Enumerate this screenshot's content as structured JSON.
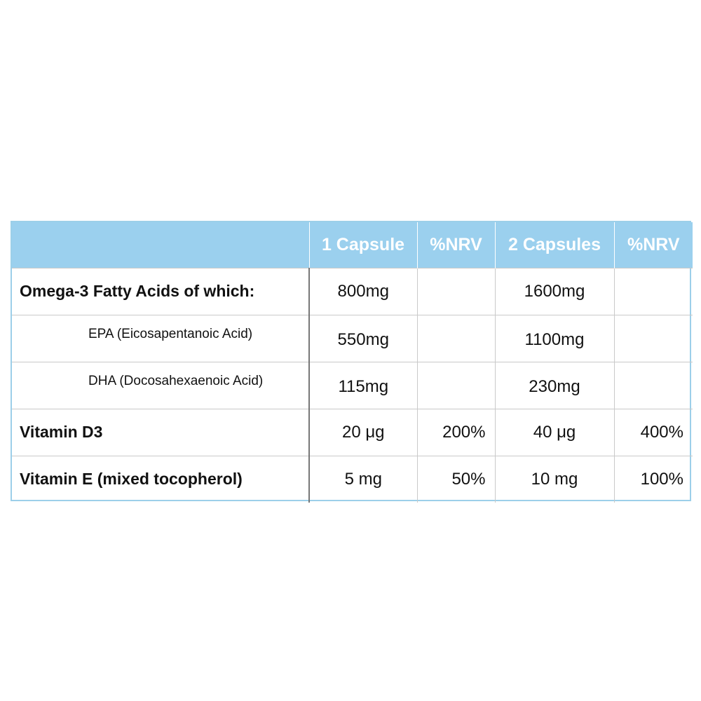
{
  "table": {
    "headers": [
      "",
      "1 Capsule",
      "%NRV",
      "2 Capsules",
      "%NRV"
    ],
    "rows": [
      {
        "name": "Omega-3 Fatty Acids of which:",
        "cap1": "800mg",
        "nrv1": "",
        "cap2": "1600mg",
        "nrv2": ""
      },
      {
        "name": "EPA (Eicosapentanoic Acid)",
        "cap1": "550mg",
        "nrv1": "",
        "cap2": "1100mg",
        "nrv2": ""
      },
      {
        "name": "DHA (Docosahexaenoic Acid)",
        "cap1": "115mg",
        "nrv1": "",
        "cap2": "230mg",
        "nrv2": ""
      },
      {
        "name": "Vitamin D3",
        "cap1": "20 μg",
        "nrv1": "200%",
        "cap2": "40 μg",
        "nrv2": "400%"
      },
      {
        "name": "Vitamin E (mixed tocopherol)",
        "cap1": "5 mg",
        "nrv1": "50%",
        "cap2": "10 mg",
        "nrv2": "100%"
      }
    ]
  },
  "colors": {
    "header_background": "#9bd0ee",
    "header_text": "#ffffff",
    "border": "#9ccfe9"
  }
}
